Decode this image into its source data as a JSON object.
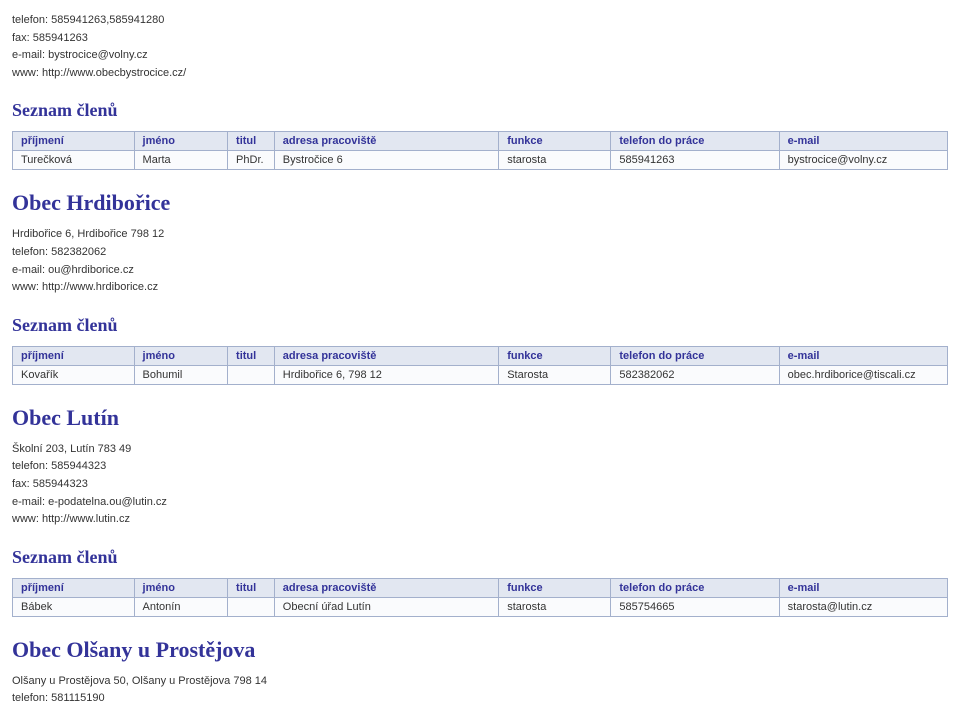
{
  "contacts_top": {
    "phone_label": "telefon:",
    "phone_value": "585941263,585941280",
    "fax_label": "fax:",
    "fax_value": "585941263",
    "email_label": "e-mail:",
    "email_value": "bystrocice@volny.cz",
    "www_label": "www:",
    "www_value": "http://www.obecbystrocice.cz/"
  },
  "table_headers": {
    "prijmeni": "příjmení",
    "jmeno": "jméno",
    "titul": "titul",
    "adresa": "adresa pracoviště",
    "funkce": "funkce",
    "telefon": "telefon do práce",
    "email": "e-mail"
  },
  "section1": {
    "seznam_title": "Seznam členů",
    "row": {
      "prijmeni": "Turečková",
      "jmeno": "Marta",
      "titul": "PhDr.",
      "adresa": "Bystročice 6",
      "funkce": "starosta",
      "telefon": "585941263",
      "email": "bystrocice@volny.cz"
    }
  },
  "section2": {
    "title": "Obec Hrdibořice",
    "address": "Hrdibořice 6, Hrdibořice 798 12",
    "phone_label": "telefon:",
    "phone_value": "582382062",
    "email_label": "e-mail:",
    "email_value": "ou@hrdiborice.cz",
    "www_label": "www:",
    "www_value": "http://www.hrdiborice.cz",
    "seznam_title": "Seznam členů",
    "row": {
      "prijmeni": "Kovařík",
      "jmeno": "Bohumil",
      "titul": "",
      "adresa": "Hrdibořice 6, 798 12",
      "funkce": "Starosta",
      "telefon": "582382062",
      "email": "obec.hrdiborice@tiscali.cz"
    }
  },
  "section3": {
    "title": "Obec Lutín",
    "address": "Školní 203, Lutín 783 49",
    "phone_label": "telefon:",
    "phone_value": "585944323",
    "fax_label": "fax:",
    "fax_value": "585944323",
    "email_label": "e-mail:",
    "email_value": "e-podatelna.ou@lutin.cz",
    "www_label": "www:",
    "www_value": "http://www.lutin.cz",
    "seznam_title": "Seznam členů",
    "row": {
      "prijmeni": "Bábek",
      "jmeno": "Antonín",
      "titul": "",
      "adresa": "Obecní úřad Lutín",
      "funkce": "starosta",
      "telefon": "585754665",
      "email": "starosta@lutin.cz"
    }
  },
  "section4": {
    "title": "Obec Olšany u Prostějova",
    "address": "Olšany u Prostějova 50, Olšany u Prostějova 798 14",
    "phone_label": "telefon:",
    "phone_value": "581115190"
  },
  "table_style": {
    "col_widths": {
      "prijmeni": "13%",
      "jmeno": "10%",
      "titul": "5%",
      "adresa": "24%",
      "funkce": "12%",
      "telefon": "18%",
      "email": "18%"
    },
    "header_bg": "#e2e7f1",
    "header_color": "#333399",
    "border_color": "#a3b0cc",
    "row_bg": "#fafbfd",
    "heading_color": "#333399"
  }
}
